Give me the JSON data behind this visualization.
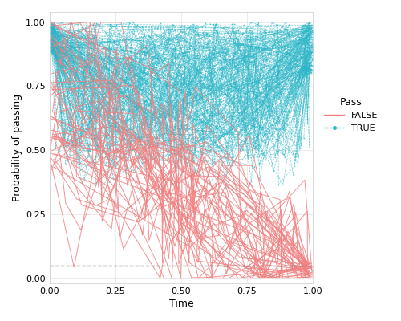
{
  "n_pass": 220,
  "n_fail": 48,
  "threshold_C": 0.05,
  "pass_color": "#29B6C8",
  "fail_color": "#F08080",
  "threshold_color": "#333333",
  "bg_color": "#ffffff",
  "grid_color": "#e8e8e8",
  "xlim": [
    0.0,
    1.0
  ],
  "ylim": [
    -0.02,
    1.04
  ],
  "xlabel": "Time",
  "ylabel": "Probability of passing",
  "legend_title": "Pass",
  "legend_false": "FALSE",
  "legend_true": "TRUE",
  "seed": 7
}
